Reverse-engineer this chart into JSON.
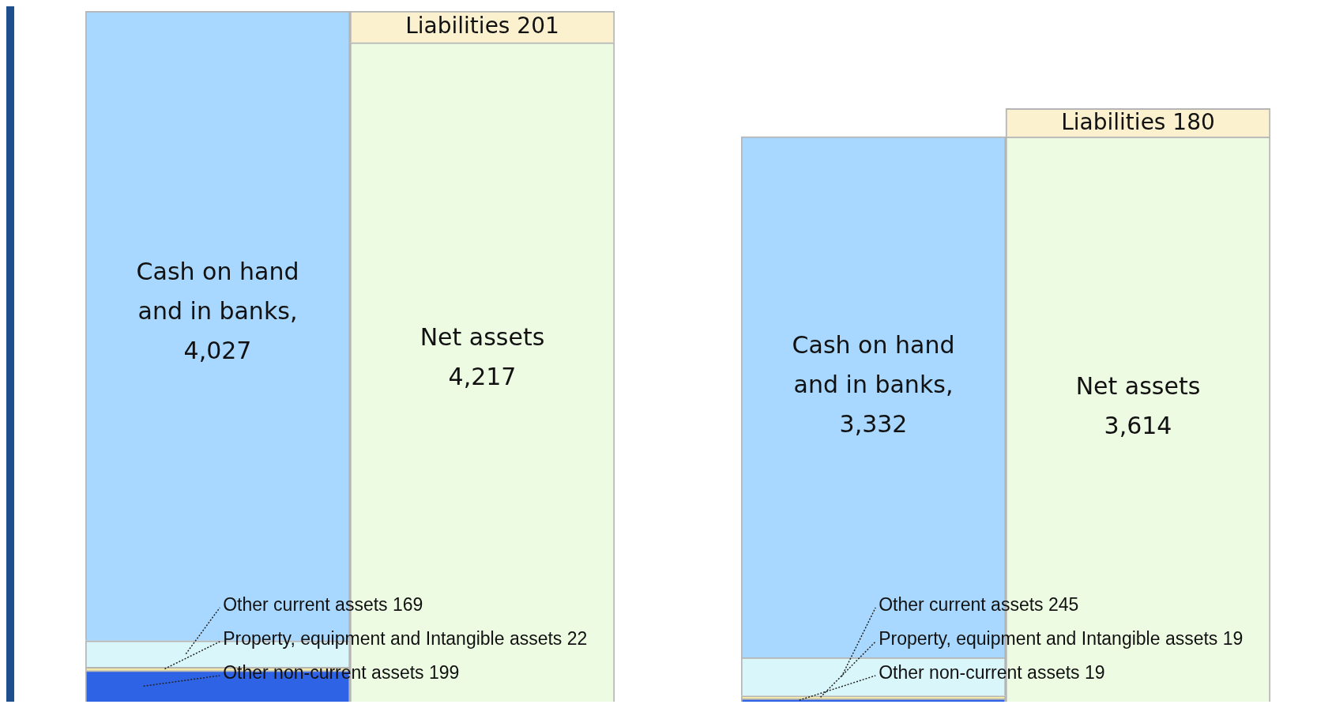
{
  "chart_data": [
    {
      "type": "bar",
      "stacked": true,
      "categories": [
        null,
        null
      ],
      "series": [
        {
          "name": "Other non-current assets",
          "color": "#2e63e6",
          "values": [
            199,
            null
          ],
          "value_labels": [
            "199",
            null
          ]
        },
        {
          "name": "Property, equipment and Intangible assets",
          "color": "#f2e9a8",
          "values": [
            22,
            null
          ],
          "value_labels": [
            "22",
            null
          ]
        },
        {
          "name": "Other current assets",
          "color": "#d9f6fa",
          "values": [
            169,
            null
          ],
          "value_labels": [
            "169",
            null
          ]
        },
        {
          "name": "Cash on hand and in banks,",
          "color": "#a8d8ff",
          "values": [
            4027,
            null
          ],
          "value_labels": [
            "4,027",
            null
          ]
        },
        {
          "name": "Net assets",
          "color": "#eefbe3",
          "values": [
            null,
            4217
          ],
          "value_labels": [
            null,
            "4,217"
          ]
        },
        {
          "name": "Liabilities",
          "color": "#fbf1cf",
          "values": [
            null,
            201
          ],
          "value_labels": [
            null,
            "201"
          ]
        }
      ]
    },
    {
      "type": "bar",
      "stacked": true,
      "categories": [
        null,
        null
      ],
      "series": [
        {
          "name": "Other non-current assets",
          "color": "#2e63e6",
          "values": [
            19,
            null
          ],
          "value_labels": [
            "19",
            null
          ]
        },
        {
          "name": "Property, equipment and Intangible assets",
          "color": "#f2e9a8",
          "values": [
            19,
            null
          ],
          "value_labels": [
            "19",
            null
          ]
        },
        {
          "name": "Other current assets",
          "color": "#d9f6fa",
          "values": [
            245,
            null
          ],
          "value_labels": [
            "245",
            null
          ]
        },
        {
          "name": "Cash on hand and in banks,",
          "color": "#a8d8ff",
          "values": [
            3332,
            null
          ],
          "value_labels": [
            "3,332",
            null
          ]
        },
        {
          "name": "Net assets",
          "color": "#eefbe3",
          "values": [
            null,
            3614
          ],
          "value_labels": [
            null,
            "3,614"
          ]
        },
        {
          "name": "Liabilities",
          "color": "#fbf1cf",
          "values": [
            null,
            180
          ],
          "value_labels": [
            null,
            "180"
          ]
        }
      ]
    }
  ]
}
